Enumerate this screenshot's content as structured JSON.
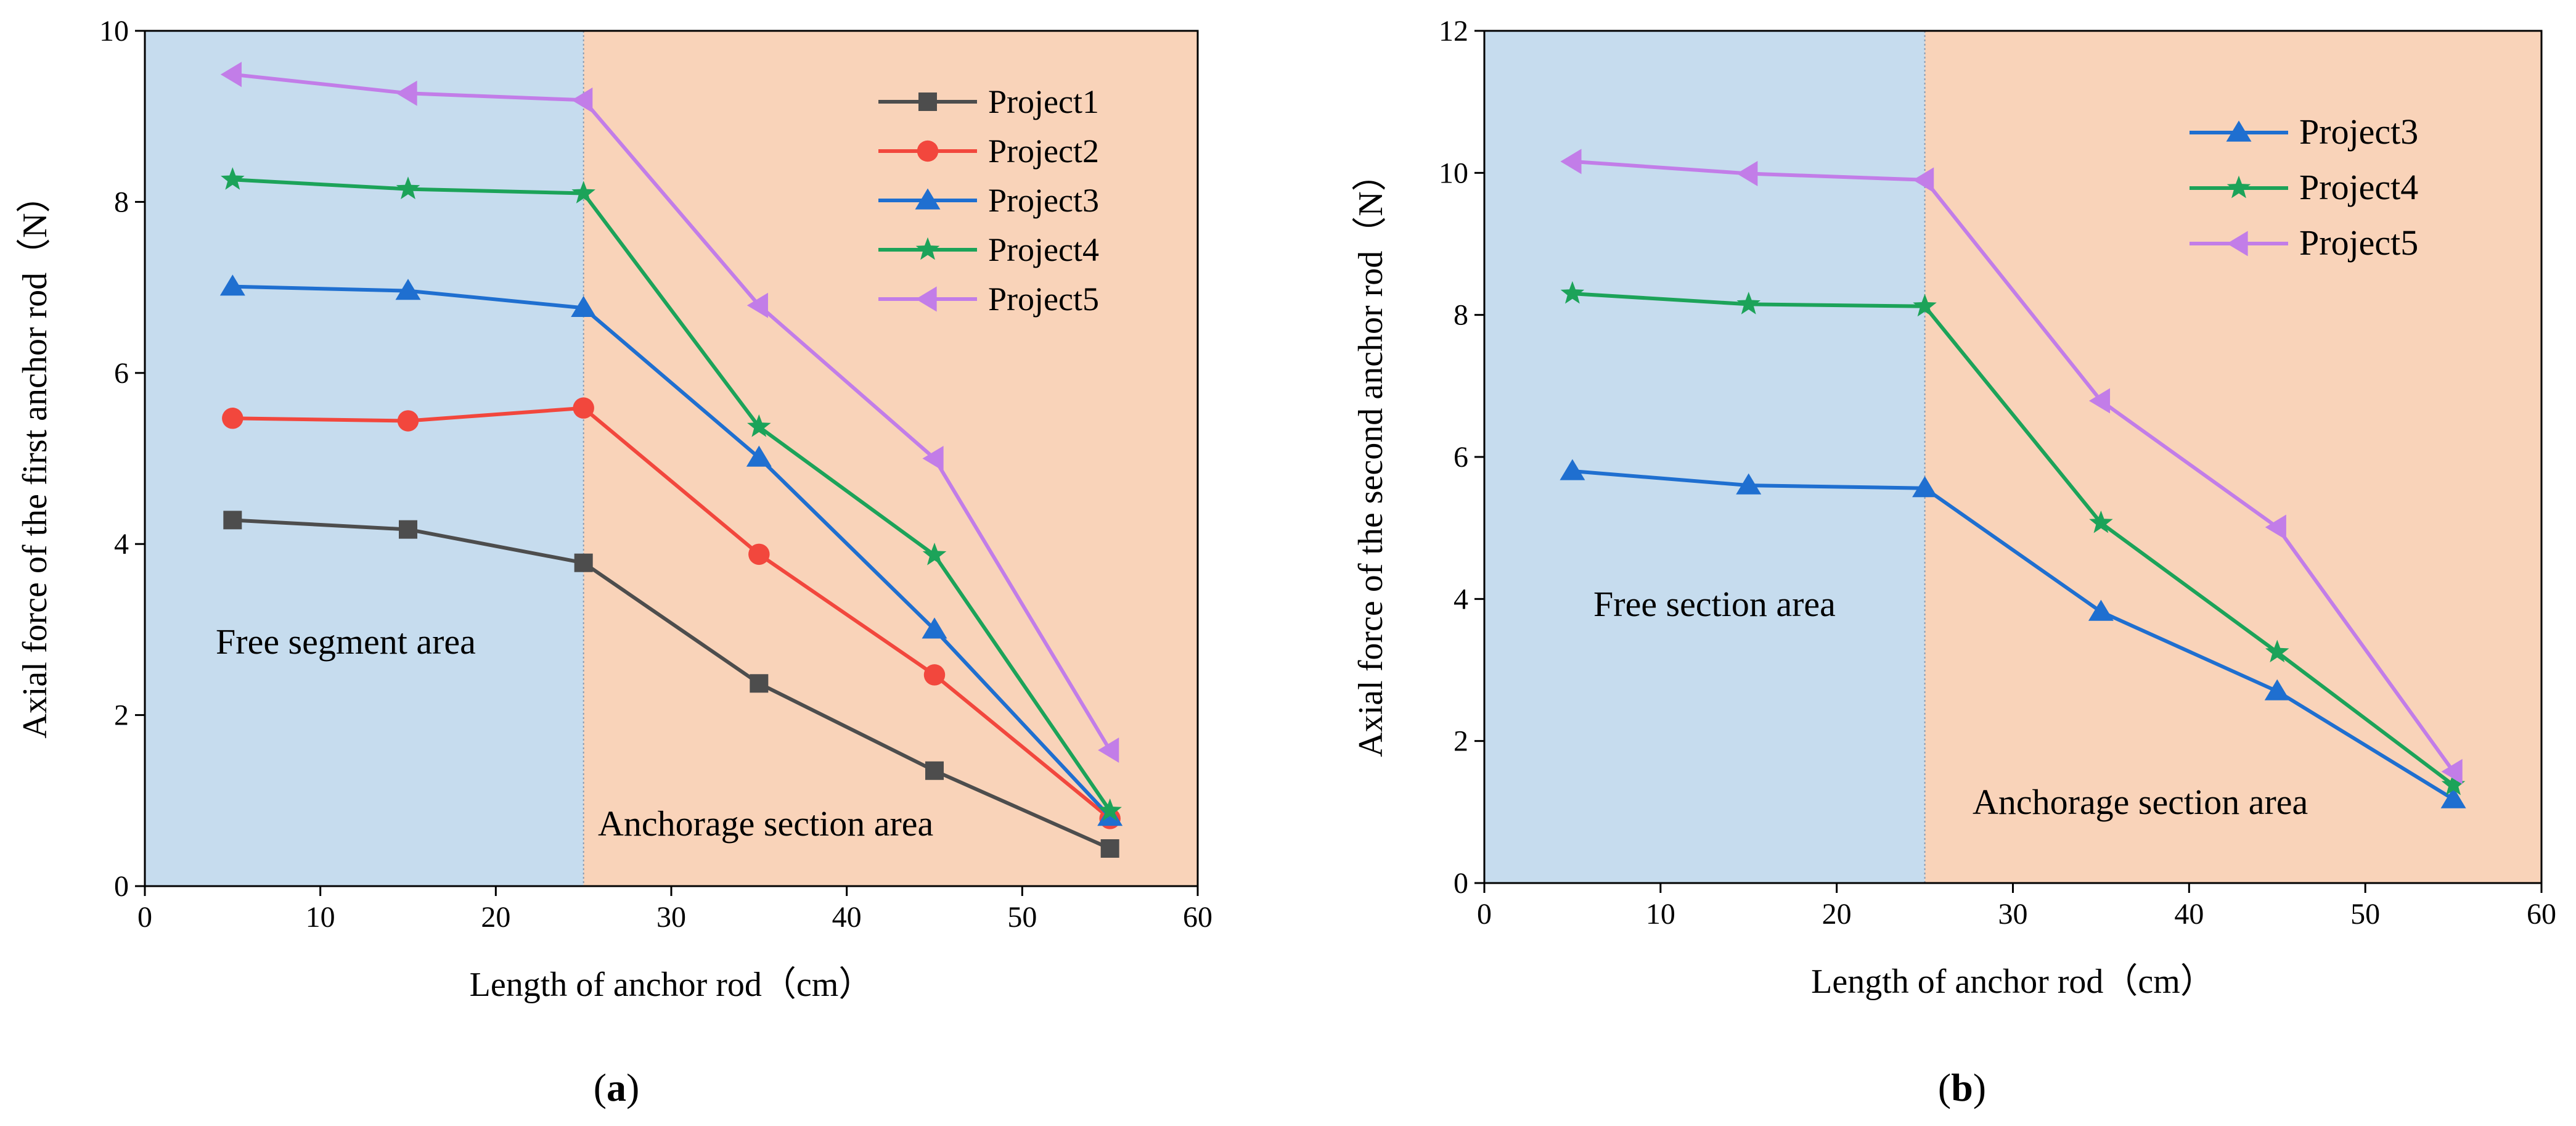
{
  "figure": {
    "panels": [
      {
        "caption": "a",
        "region_labels": [
          "Free segment area",
          "Anchorage section area"
        ],
        "chart_data": {
          "type": "line",
          "title": "",
          "xlabel": "Length of anchor rod（cm）",
          "ylabel": "Axial force of the first anchor rod（N）",
          "xlim": [
            0,
            60
          ],
          "ylim": [
            0,
            10
          ],
          "xticks": [
            0,
            10,
            20,
            30,
            40,
            50,
            60
          ],
          "yticks": [
            0,
            2,
            4,
            6,
            8,
            10
          ],
          "grid": false,
          "legend_position": "top-right",
          "x": [
            5,
            15,
            25,
            35,
            45,
            55
          ],
          "shaded_regions": [
            {
              "x_range": [
                0,
                25
              ],
              "color": "#c6dcee",
              "label": "Free segment area"
            },
            {
              "x_range": [
                25,
                60
              ],
              "color": "#f9d3b9",
              "label": "Anchorage section area"
            }
          ],
          "series": [
            {
              "name": "Project1",
              "color": "#4d4d4d",
              "marker": "square",
              "values": [
                4.28,
                4.17,
                3.78,
                2.37,
                1.35,
                0.44
              ]
            },
            {
              "name": "Project2",
              "color": "#f2473d",
              "marker": "circle",
              "values": [
                5.47,
                5.44,
                5.59,
                3.88,
                2.47,
                0.79
              ]
            },
            {
              "name": "Project3",
              "color": "#1f6fd0",
              "marker": "triangle",
              "values": [
                7.01,
                6.96,
                6.76,
                5.01,
                3.0,
                0.81
              ]
            },
            {
              "name": "Project4",
              "color": "#1ca359",
              "marker": "star",
              "values": [
                8.26,
                8.15,
                8.1,
                5.37,
                3.87,
                0.88
              ]
            },
            {
              "name": "Project5",
              "color": "#c27de8",
              "marker": "triangle-left",
              "values": [
                9.49,
                9.27,
                9.19,
                6.79,
                5.0,
                1.59
              ]
            }
          ]
        }
      },
      {
        "caption": "b",
        "region_labels": [
          "Free section area",
          "Anchorage section area"
        ],
        "chart_data": {
          "type": "line",
          "title": "",
          "xlabel": "Length of anchor rod（cm）",
          "ylabel": "Axial force of the second anchor rod（N）",
          "xlim": [
            0,
            60
          ],
          "ylim": [
            0,
            12
          ],
          "xticks": [
            0,
            10,
            20,
            30,
            40,
            50,
            60
          ],
          "yticks": [
            0,
            2,
            4,
            6,
            8,
            10,
            12
          ],
          "grid": false,
          "legend_position": "top-right",
          "x": [
            5,
            15,
            25,
            35,
            45,
            55
          ],
          "shaded_regions": [
            {
              "x_range": [
                0,
                25
              ],
              "color": "#c6dcee",
              "label": "Free section area"
            },
            {
              "x_range": [
                25,
                60
              ],
              "color": "#f9d3b9",
              "label": "Anchorage section area"
            }
          ],
          "series": [
            {
              "name": "Project3",
              "color": "#1f6fd0",
              "marker": "triangle",
              "values": [
                5.8,
                5.6,
                5.56,
                3.82,
                2.7,
                1.18
              ]
            },
            {
              "name": "Project4",
              "color": "#1ca359",
              "marker": "star",
              "values": [
                8.3,
                8.15,
                8.12,
                5.07,
                3.25,
                1.38
              ]
            },
            {
              "name": "Project5",
              "color": "#c27de8",
              "marker": "triangle-left",
              "values": [
                10.16,
                9.99,
                9.9,
                6.79,
                5.01,
                1.57
              ]
            }
          ]
        }
      }
    ]
  }
}
